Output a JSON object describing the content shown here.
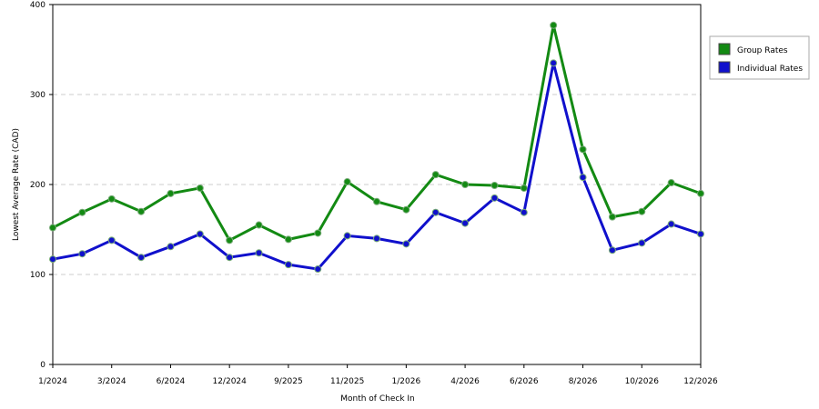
{
  "chart_data": {
    "type": "line",
    "x_label": "Month of Check In",
    "y_label": "Lowest Average Rate (CAD)",
    "categories": [
      "1/2024",
      null,
      "3/2024",
      null,
      "6/2024",
      null,
      "12/2024",
      null,
      "9/2025",
      null,
      "11/2025",
      null,
      "1/2026",
      null,
      "4/2026",
      null,
      "6/2026",
      null,
      "8/2026",
      null,
      "10/2026",
      null,
      "12/2026"
    ],
    "series": [
      {
        "name": "Group Rates",
        "color": "#138a13",
        "values": [
          152,
          169,
          184,
          170,
          190,
          196,
          138,
          155,
          139,
          146,
          203,
          181,
          172,
          211,
          200,
          199,
          196,
          377,
          239,
          164,
          170,
          202,
          190
        ]
      },
      {
        "name": "Individual Rates",
        "color": "#1010cc",
        "values": [
          117,
          123,
          138,
          119,
          131,
          145,
          119,
          124,
          111,
          106,
          143,
          140,
          134,
          169,
          157,
          185,
          169,
          335,
          208,
          127,
          135,
          156,
          145
        ]
      }
    ],
    "ylim": [
      0,
      400
    ],
    "yticks": [
      0,
      100,
      200,
      300,
      400
    ],
    "grid": true,
    "legend": "top-right"
  }
}
